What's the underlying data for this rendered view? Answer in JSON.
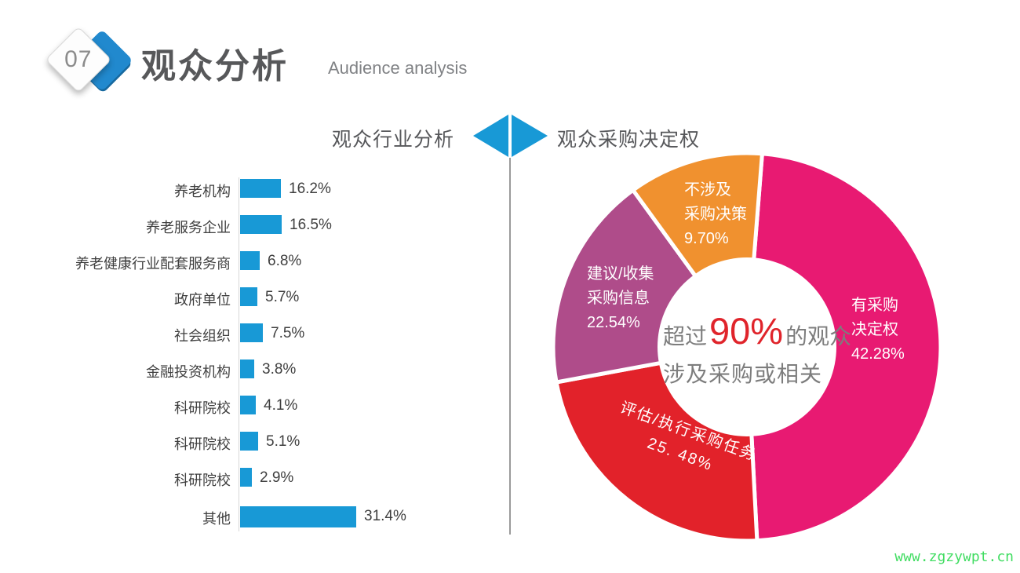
{
  "header": {
    "number": "07",
    "title": "观众分析",
    "subtitle": "Audience analysis"
  },
  "sections": {
    "left_title": "观众行业分析",
    "right_title": "观众采购决定权"
  },
  "watermark": "www.zgzywpt.cn",
  "colors": {
    "bar_blue": "#1899d6",
    "magenta": "#e81a72",
    "red": "#e2222a",
    "purple": "#af4c8a",
    "orange": "#f0912f",
    "highlight_red": "#e0242b",
    "watermark_green": "#41dd62"
  },
  "chart_data": [
    {
      "type": "bar",
      "title": "观众行业分析",
      "orientation": "horizontal",
      "categories": [
        "养老机构",
        "养老服务企业",
        "养老健康行业配套服务商",
        "政府单位",
        "社会组织",
        "金融投资机构",
        "科研院校",
        "科研院校",
        "科研院校",
        "其他"
      ],
      "values": [
        16.2,
        16.5,
        6.8,
        5.7,
        7.5,
        3.8,
        4.1,
        5.1,
        2.9,
        31.4
      ],
      "value_labels": [
        "16.2%",
        "16.5%",
        "6.8%",
        "5.7%",
        "7.5%",
        "3.8%",
        "4.1%",
        "5.1%",
        "2.9%",
        "31.4%"
      ],
      "unit": "%",
      "bar_color": "#1899d6",
      "grid": false
    },
    {
      "type": "donut",
      "title": "观众采购决定权",
      "segments": [
        {
          "label": "有采购决定权",
          "label_lines": [
            "有采购",
            "决定权",
            "42.28%"
          ],
          "value": 42.28,
          "color": "#e81a72"
        },
        {
          "label": "评估/执行采购任务",
          "label_lines": [
            "评估/执行采购任务",
            "25. 48%"
          ],
          "value": 25.48,
          "color": "#e2222a"
        },
        {
          "label": "建议/收集采购信息",
          "label_lines": [
            "建议/收集",
            "采购信息",
            "22.54%"
          ],
          "value": 22.54,
          "color": "#af4c8a"
        },
        {
          "label": "不涉及采购决策",
          "label_lines": [
            "不涉及",
            "采购决策",
            "9.70%"
          ],
          "value": 9.7,
          "color": "#f0912f"
        }
      ],
      "center_text": {
        "prefix": "超过",
        "highlight": "90%",
        "suffix": "的观众",
        "line2": "涉及采购或相关"
      }
    }
  ]
}
